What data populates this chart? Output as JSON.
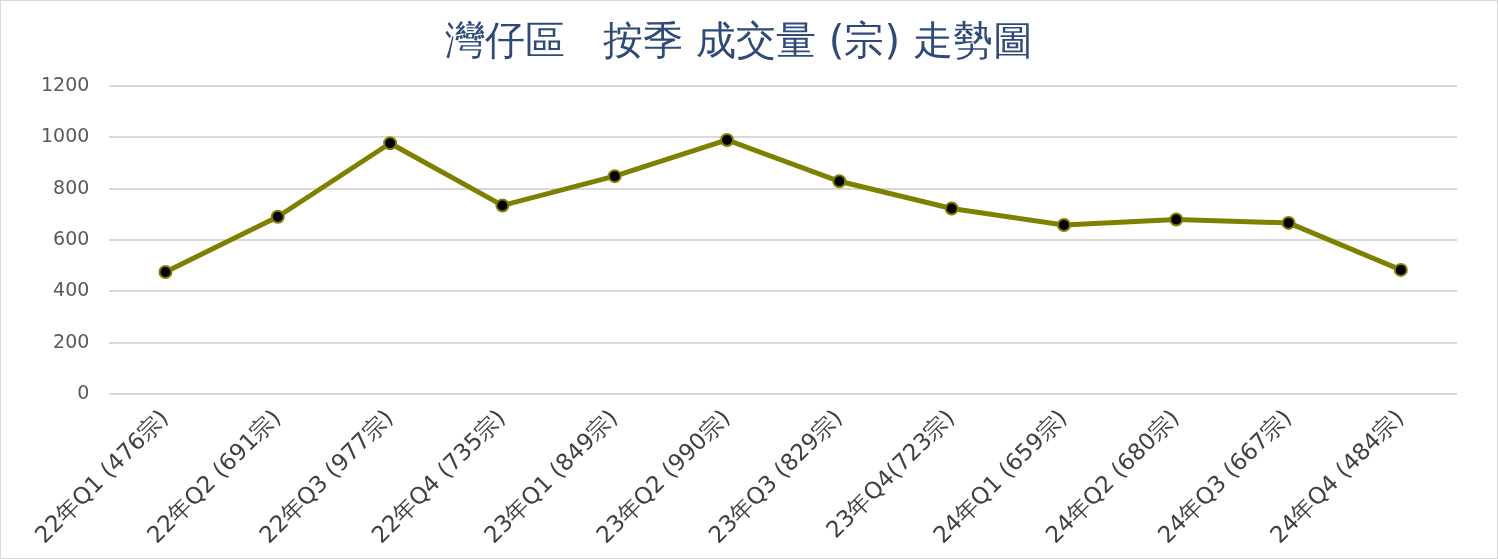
{
  "chart_data": {
    "type": "line",
    "title": "灣仔區   按季 成交量 (宗) 走勢圖",
    "categories": [
      "22年Q1 (476宗)",
      "22年Q2 (691宗)",
      "22年Q3 (977宗)",
      "22年Q4 (735宗)",
      "23年Q1 (849宗)",
      "23年Q2 (990宗)",
      "23年Q3 (829宗)",
      "23年Q4(723宗)",
      "24年Q1 (659宗)",
      "24年Q2 (680宗)",
      "24年Q3 (667宗)",
      "24年Q4 (484宗)"
    ],
    "series": [
      {
        "color": "#7f7f00",
        "values": [
          476,
          691,
          977,
          735,
          849,
          990,
          829,
          723,
          659,
          680,
          667,
          484
        ]
      }
    ],
    "ylim": [
      0,
      1200
    ],
    "yticks": [
      0,
      200,
      400,
      600,
      800,
      1000,
      1200
    ],
    "grid": "y",
    "legend": false,
    "marker": "circle",
    "line_style": "solid"
  }
}
